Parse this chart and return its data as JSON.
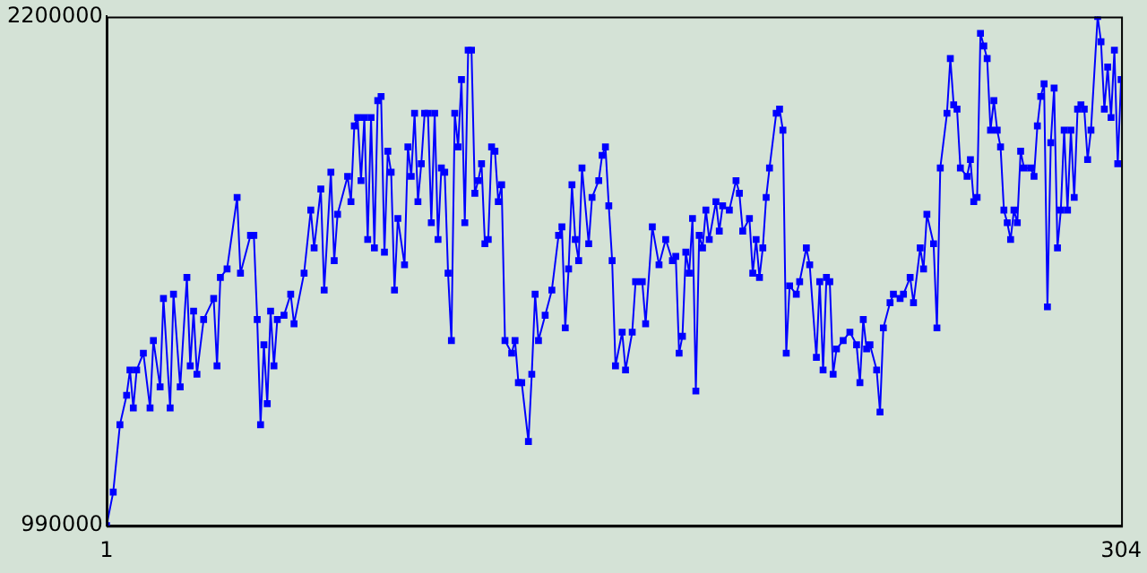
{
  "chart_data": {
    "type": "line",
    "marker": "square",
    "line_style": "solid",
    "grid": false,
    "legend": false,
    "xlim": [
      1,
      304
    ],
    "xticks": [
      1,
      304
    ],
    "ylim": [
      990000,
      2200000
    ],
    "yticks": [
      990000,
      2200000
    ],
    "series": [
      {
        "color": "#0000ff",
        "x": [
          1,
          3,
          5,
          7,
          8,
          9,
          10,
          12,
          14,
          15,
          17,
          18,
          20,
          21,
          23,
          25,
          26,
          27,
          28,
          30,
          33,
          34,
          35,
          37,
          40,
          41,
          44,
          45,
          46,
          47,
          48,
          49,
          50,
          51,
          52,
          54,
          56,
          57,
          60,
          62,
          63,
          65,
          66,
          68,
          69,
          70,
          73,
          74,
          75,
          76,
          77,
          78,
          79,
          80,
          81,
          82,
          83,
          84,
          85,
          86,
          87,
          88,
          90,
          91,
          92,
          93,
          94,
          95,
          96,
          97,
          98,
          99,
          100,
          101,
          102,
          103,
          104,
          105,
          106,
          107,
          108,
          109,
          110,
          111,
          112,
          113,
          114,
          115,
          116,
          117,
          118,
          119,
          120,
          122,
          123,
          124,
          125,
          127,
          128,
          129,
          130,
          132,
          134,
          136,
          137,
          138,
          139,
          140,
          141,
          142,
          143,
          145,
          146,
          148,
          149,
          150,
          151,
          152,
          153,
          155,
          156,
          158,
          159,
          161,
          162,
          164,
          166,
          168,
          170,
          171,
          172,
          173,
          174,
          175,
          176,
          177,
          178,
          179,
          180,
          181,
          183,
          184,
          185,
          187,
          189,
          190,
          191,
          193,
          194,
          195,
          196,
          197,
          198,
          199,
          201,
          202,
          203,
          204,
          205,
          207,
          208,
          210,
          211,
          213,
          214,
          215,
          216,
          217,
          218,
          219,
          221,
          223,
          225,
          226,
          227,
          228,
          229,
          231,
          232,
          233,
          235,
          236,
          238,
          239,
          241,
          242,
          244,
          245,
          246,
          248,
          249,
          250,
          252,
          253,
          254,
          255,
          256,
          258,
          259,
          260,
          261,
          262,
          263,
          264,
          265,
          266,
          267,
          268,
          269,
          270,
          271,
          272,
          273,
          274,
          275,
          277,
          278,
          279,
          280,
          281,
          282,
          283,
          284,
          285,
          286,
          287,
          288,
          289,
          290,
          291,
          292,
          293,
          294,
          295,
          297,
          298,
          299,
          300,
          301,
          302,
          303,
          304
        ],
        "values": [
          990000,
          1070000,
          1230000,
          1300000,
          1360000,
          1270000,
          1360000,
          1400000,
          1270000,
          1430000,
          1320000,
          1530000,
          1270000,
          1540000,
          1320000,
          1580000,
          1370000,
          1500000,
          1350000,
          1480000,
          1530000,
          1370000,
          1580000,
          1600000,
          1770000,
          1590000,
          1680000,
          1680000,
          1480000,
          1230000,
          1420000,
          1280000,
          1500000,
          1370000,
          1480000,
          1490000,
          1540000,
          1470000,
          1590000,
          1740000,
          1650000,
          1790000,
          1550000,
          1830000,
          1620000,
          1730000,
          1820000,
          1760000,
          1940000,
          1960000,
          1810000,
          1960000,
          1670000,
          1960000,
          1650000,
          2000000,
          2010000,
          1640000,
          1880000,
          1830000,
          1550000,
          1720000,
          1610000,
          1890000,
          1820000,
          1970000,
          1760000,
          1850000,
          1970000,
          1970000,
          1710000,
          1970000,
          1670000,
          1840000,
          1830000,
          1590000,
          1430000,
          1970000,
          1890000,
          2050000,
          1710000,
          2120000,
          2120000,
          1780000,
          1810000,
          1850000,
          1660000,
          1670000,
          1890000,
          1880000,
          1760000,
          1800000,
          1430000,
          1400000,
          1430000,
          1330000,
          1330000,
          1190000,
          1350000,
          1540000,
          1430000,
          1490000,
          1550000,
          1680000,
          1700000,
          1460000,
          1600000,
          1800000,
          1670000,
          1620000,
          1840000,
          1660000,
          1770000,
          1810000,
          1870000,
          1890000,
          1750000,
          1620000,
          1370000,
          1450000,
          1360000,
          1450000,
          1570000,
          1570000,
          1470000,
          1700000,
          1610000,
          1670000,
          1620000,
          1630000,
          1400000,
          1440000,
          1640000,
          1590000,
          1720000,
          1310000,
          1680000,
          1650000,
          1740000,
          1670000,
          1760000,
          1690000,
          1750000,
          1740000,
          1810000,
          1780000,
          1690000,
          1720000,
          1590000,
          1670000,
          1580000,
          1650000,
          1770000,
          1840000,
          1970000,
          1980000,
          1930000,
          1400000,
          1560000,
          1540000,
          1570000,
          1650000,
          1610000,
          1390000,
          1570000,
          1360000,
          1580000,
          1570000,
          1350000,
          1410000,
          1430000,
          1450000,
          1420000,
          1330000,
          1480000,
          1410000,
          1420000,
          1360000,
          1260000,
          1460000,
          1520000,
          1540000,
          1530000,
          1540000,
          1580000,
          1520000,
          1650000,
          1600000,
          1730000,
          1660000,
          1460000,
          1840000,
          1970000,
          2100000,
          1990000,
          1980000,
          1840000,
          1820000,
          1860000,
          1760000,
          1770000,
          2160000,
          2130000,
          2100000,
          1930000,
          2000000,
          1930000,
          1890000,
          1740000,
          1710000,
          1670000,
          1740000,
          1710000,
          1880000,
          1840000,
          1840000,
          1820000,
          1940000,
          2010000,
          2040000,
          1510000,
          1900000,
          2030000,
          1650000,
          1740000,
          1930000,
          1740000,
          1930000,
          1770000,
          1980000,
          1990000,
          1980000,
          1860000,
          1930000,
          2200000,
          2140000,
          1980000,
          2080000,
          1960000,
          2120000,
          1850000,
          2050000
        ]
      }
    ]
  }
}
